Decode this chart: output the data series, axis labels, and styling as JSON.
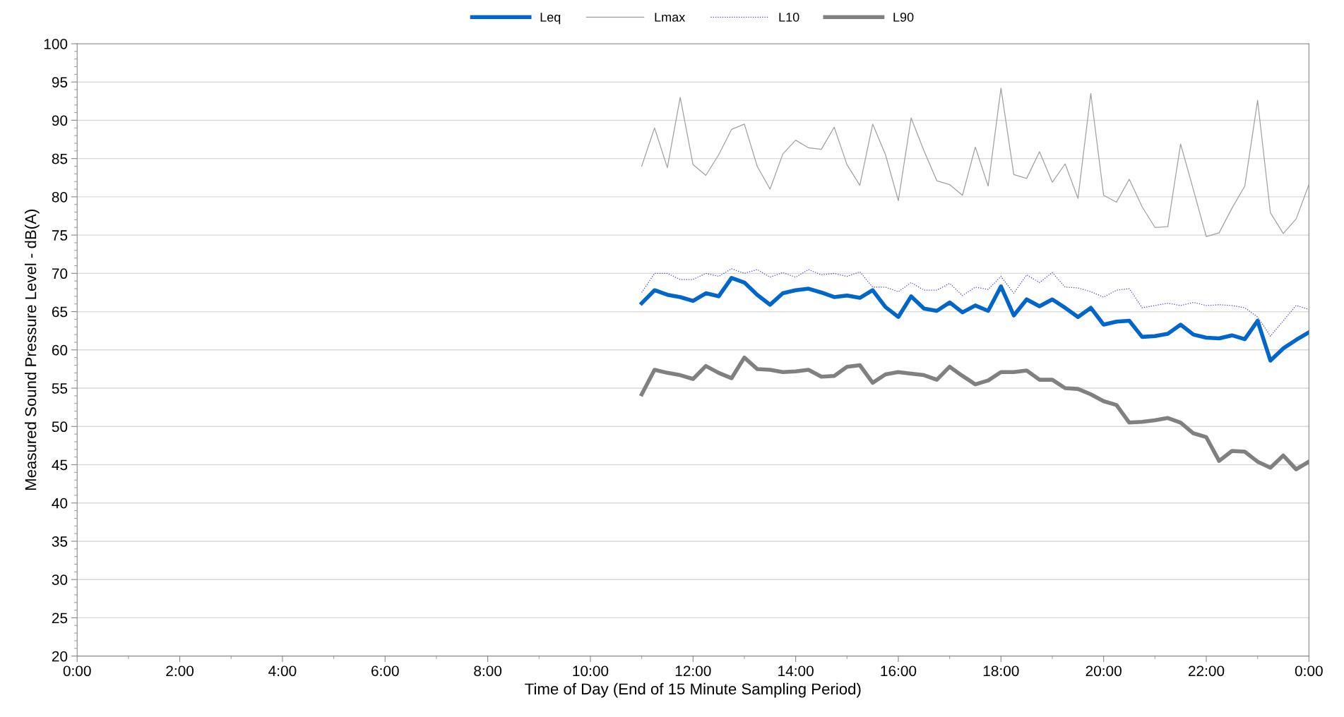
{
  "chart_data": {
    "type": "line",
    "xlabel": "Time of Day (End of 15 Minute Sampling Period)",
    "ylabel": "Measured Sound Pressure Level - dB(A)",
    "x": [
      11,
      11.25,
      11.5,
      11.75,
      12,
      12.25,
      12.5,
      12.75,
      13,
      13.25,
      13.5,
      13.75,
      14,
      14.25,
      14.5,
      14.75,
      15,
      15.25,
      15.5,
      15.75,
      16,
      16.25,
      16.5,
      16.75,
      17,
      17.25,
      17.5,
      17.75,
      18,
      18.25,
      18.5,
      18.75,
      19,
      19.25,
      19.5,
      19.75,
      20,
      20.25,
      20.5,
      20.75,
      21,
      21.25,
      21.5,
      21.75,
      22,
      22.25,
      22.5,
      22.75,
      23,
      23.25,
      23.5,
      23.75,
      24
    ],
    "series": [
      {
        "name": "Leq",
        "color": "#0066cc",
        "line_style": "solid",
        "values": [
          66.1,
          67.8,
          67.2,
          66.9,
          66.4,
          67.4,
          67,
          69.4,
          68.8,
          67.2,
          65.9,
          67.4,
          67.8,
          68,
          67.5,
          66.9,
          67.1,
          66.8,
          67.8,
          65.6,
          64.3,
          67,
          65.4,
          65.1,
          66.2,
          64.9,
          65.8,
          65.1,
          68.3,
          64.5,
          66.6,
          65.7,
          66.6,
          65.5,
          64.3,
          65.5,
          63.3,
          63.7,
          63.8,
          61.7,
          61.8,
          62.1,
          63.3,
          62,
          61.6,
          61.5,
          61.9,
          61.4,
          63.8,
          58.6,
          60.2,
          61.3,
          62.3
        ]
      },
      {
        "name": "Lmax",
        "color": "#a0a0a0",
        "line_style": "solid",
        "values": [
          84,
          89,
          83.8,
          93,
          84.2,
          82.8,
          85.5,
          88.8,
          89.5,
          84,
          81,
          85.6,
          87.4,
          86.4,
          86.2,
          89.1,
          84.2,
          81.5,
          89.5,
          85.5,
          79.5,
          90.3,
          86,
          82.1,
          81.6,
          80.2,
          86.5,
          81.4,
          94.2,
          82.9,
          82.4,
          85.9,
          81.9,
          84.3,
          79.8,
          93.5,
          80.2,
          79.3,
          82.3,
          78.7,
          76,
          76.1,
          86.9,
          80.9,
          74.8,
          75.3,
          78.5,
          81.4,
          92.6,
          77.9,
          75.2,
          77.1,
          81.6
        ]
      },
      {
        "name": "L10",
        "color": "#4444bb",
        "line_style": "dotted",
        "values": [
          67.5,
          70,
          70,
          69.2,
          69.2,
          70,
          69.6,
          70.6,
          70,
          70.5,
          69.5,
          70.1,
          69.5,
          70.5,
          69.8,
          70,
          69.6,
          70.2,
          68.2,
          68.2,
          67.6,
          68.8,
          67.8,
          67.8,
          68.7,
          67.1,
          68.2,
          67.9,
          69.6,
          67.4,
          69.8,
          68.8,
          70.1,
          68.2,
          68.1,
          67.6,
          66.9,
          67.8,
          68,
          65.5,
          65.8,
          66.1,
          65.8,
          66.2,
          65.8,
          65.9,
          65.8,
          65.5,
          64.3,
          61.8,
          63.8,
          65.8,
          65.3
        ]
      },
      {
        "name": "L90",
        "color": "#808080",
        "line_style": "solid",
        "values": [
          54.2,
          57.4,
          57,
          56.7,
          56.2,
          57.9,
          57,
          56.3,
          59,
          57.5,
          57.4,
          57.1,
          57.2,
          57.4,
          56.5,
          56.6,
          57.8,
          58,
          55.7,
          56.8,
          57.1,
          56.9,
          56.7,
          56.1,
          57.8,
          56.6,
          55.5,
          56,
          57.1,
          57.1,
          57.3,
          56.1,
          56.1,
          55,
          54.9,
          54.2,
          53.3,
          52.8,
          50.5,
          50.6,
          50.8,
          51.1,
          50.5,
          49.1,
          48.6,
          45.5,
          46.8,
          46.7,
          45.4,
          44.6,
          46.2,
          44.4,
          45.4
        ]
      }
    ],
    "xlim": [
      0,
      24
    ],
    "xticks": [
      {
        "value": 0,
        "label": "0:00"
      },
      {
        "value": 2,
        "label": "2:00"
      },
      {
        "value": 4,
        "label": "4:00"
      },
      {
        "value": 6,
        "label": "6:00"
      },
      {
        "value": 8,
        "label": "8:00"
      },
      {
        "value": 10,
        "label": "10:00"
      },
      {
        "value": 12,
        "label": "12:00"
      },
      {
        "value": 14,
        "label": "14:00"
      },
      {
        "value": 16,
        "label": "16:00"
      },
      {
        "value": 18,
        "label": "18:00"
      },
      {
        "value": 20,
        "label": "20:00"
      },
      {
        "value": 22,
        "label": "22:00"
      },
      {
        "value": 24,
        "label": "0:00"
      }
    ],
    "ylim": [
      20,
      100
    ],
    "yticks": [
      20,
      25,
      30,
      35,
      40,
      45,
      50,
      55,
      60,
      65,
      70,
      75,
      80,
      85,
      90,
      95,
      100
    ],
    "grid": "y",
    "legend": "top",
    "marker": "none"
  }
}
